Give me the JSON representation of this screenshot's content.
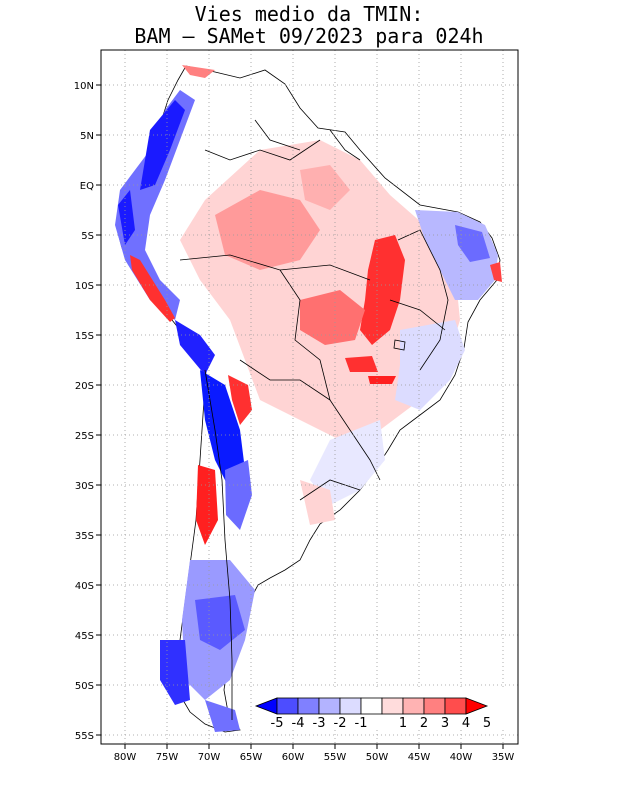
{
  "title": {
    "line1": "Vies medio da TMIN:",
    "line2": "BAM – SAMet 09/2023  para 024h"
  },
  "lat_labels": [
    "10N",
    "5N",
    "EQ",
    "5S",
    "10S",
    "15S",
    "20S",
    "25S",
    "30S",
    "35S",
    "40S",
    "45S",
    "50S",
    "55S"
  ],
  "lon_labels": [
    "80W",
    "75W",
    "70W",
    "65W",
    "60W",
    "55W",
    "50W",
    "45W",
    "40W",
    "35W"
  ],
  "colorbar": {
    "labels": [
      "-5",
      "-4",
      "-3",
      "-2",
      "-1",
      "1",
      "2",
      "3",
      "4",
      "5"
    ],
    "colors": [
      "#0000ff",
      "#4d4dff",
      "#8080ff",
      "#b3b3ff",
      "#dcdcff",
      "#ffffff",
      "#ffdcdc",
      "#ffb3b3",
      "#ff8080",
      "#ff4d4d",
      "#ff0000"
    ]
  },
  "legend_colors": {
    "strong_cold": "#0a1aff",
    "cold": "#6b6bff",
    "light_cold": "#c8c8ff",
    "neutral": "#ffffff",
    "light_warm": "#ffd4d4",
    "warm": "#ff8c8c",
    "strong_warm": "#ff2020"
  }
}
